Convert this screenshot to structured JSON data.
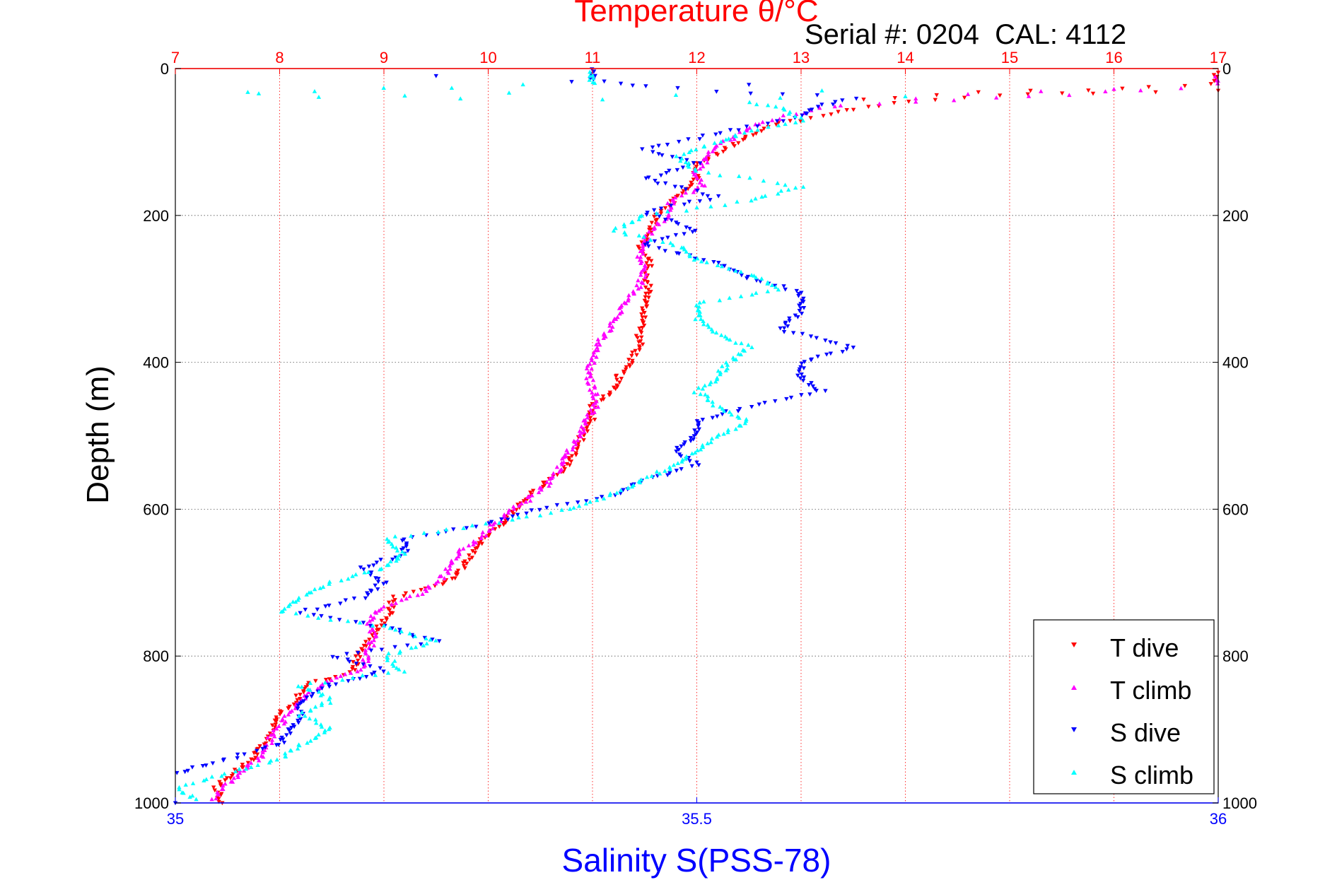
{
  "chart_data": {
    "type": "scatter",
    "title": "Temperature θ/°C",
    "annotation": "Serial #: 0204  CAL: 4112",
    "ylabel": "Depth (m)",
    "xlabel_bottom": "Salinity S(PSS-78)",
    "xlabel_top": "Temperature θ/°C",
    "ylim": [
      0,
      1000
    ],
    "y_reversed": true,
    "y_ticks": [
      0,
      200,
      400,
      600,
      800,
      1000
    ],
    "temperature_axis": {
      "range": [
        7,
        17
      ],
      "ticks": [
        7,
        8,
        9,
        10,
        11,
        12,
        13,
        14,
        15,
        16,
        17
      ],
      "color": "#ff0000"
    },
    "salinity_axis": {
      "range": [
        35,
        36
      ],
      "ticks": [
        35,
        35.5,
        36
      ],
      "color": "#0000ff"
    },
    "grid": {
      "vertical": "temperature ticks, red dotted",
      "horizontal": "depth ticks, gray dotted"
    },
    "legend": {
      "placement": "bottom-right",
      "entries": [
        "T dive",
        "T climb",
        "S dive",
        "S climb"
      ]
    },
    "series": [
      {
        "name": "T dive",
        "axis": "temperature",
        "marker": "triangle-down",
        "color": "#ff0000",
        "points": [
          [
            17.0,
            0
          ],
          [
            16.95,
            20
          ],
          [
            14.0,
            45
          ],
          [
            13.5,
            55
          ],
          [
            13.2,
            65
          ],
          [
            12.8,
            75
          ],
          [
            12.6,
            85
          ],
          [
            12.4,
            100
          ],
          [
            12.2,
            115
          ],
          [
            12.0,
            130
          ],
          [
            12.0,
            150
          ],
          [
            11.85,
            170
          ],
          [
            11.7,
            190
          ],
          [
            11.6,
            205
          ],
          [
            11.55,
            225
          ],
          [
            11.45,
            245
          ],
          [
            11.55,
            265
          ],
          [
            11.5,
            285
          ],
          [
            11.55,
            300
          ],
          [
            11.5,
            320
          ],
          [
            11.5,
            340
          ],
          [
            11.45,
            360
          ],
          [
            11.45,
            380
          ],
          [
            11.35,
            400
          ],
          [
            11.25,
            420
          ],
          [
            11.2,
            440
          ],
          [
            11.0,
            460
          ],
          [
            11.0,
            480
          ],
          [
            10.9,
            500
          ],
          [
            10.85,
            520
          ],
          [
            10.75,
            540
          ],
          [
            10.6,
            560
          ],
          [
            10.4,
            580
          ],
          [
            10.25,
            600
          ],
          [
            10.15,
            620
          ],
          [
            9.95,
            640
          ],
          [
            9.85,
            660
          ],
          [
            9.75,
            680
          ],
          [
            9.6,
            700
          ],
          [
            9.1,
            720
          ],
          [
            9.05,
            740
          ],
          [
            8.95,
            760
          ],
          [
            8.85,
            780
          ],
          [
            8.75,
            800
          ],
          [
            8.7,
            820
          ],
          [
            8.25,
            840
          ],
          [
            8.15,
            860
          ],
          [
            8.0,
            880
          ],
          [
            7.95,
            900
          ],
          [
            7.85,
            920
          ],
          [
            7.75,
            940
          ],
          [
            7.55,
            960
          ],
          [
            7.4,
            980
          ],
          [
            7.45,
            1000
          ]
        ],
        "scatter": [
          [
            17.0,
            30
          ],
          [
            16.4,
            32
          ],
          [
            15.8,
            34
          ],
          [
            15.2,
            30
          ],
          [
            14.7,
            32
          ],
          [
            14.3,
            36
          ],
          [
            13.9,
            40
          ],
          [
            13.6,
            42
          ]
        ]
      },
      {
        "name": "T climb",
        "axis": "temperature",
        "marker": "triangle-up",
        "color": "#ff00ff",
        "points": [
          [
            17.0,
            10
          ],
          [
            17.0,
            25
          ],
          [
            13.4,
            50
          ],
          [
            13.0,
            60
          ],
          [
            12.7,
            70
          ],
          [
            12.5,
            80
          ],
          [
            12.35,
            95
          ],
          [
            12.15,
            110
          ],
          [
            12.1,
            125
          ],
          [
            11.95,
            140
          ],
          [
            12.05,
            160
          ],
          [
            11.75,
            180
          ],
          [
            11.75,
            200
          ],
          [
            11.6,
            215
          ],
          [
            11.5,
            235
          ],
          [
            11.45,
            255
          ],
          [
            11.5,
            275
          ],
          [
            11.45,
            295
          ],
          [
            11.35,
            315
          ],
          [
            11.25,
            335
          ],
          [
            11.15,
            355
          ],
          [
            11.05,
            375
          ],
          [
            11.0,
            395
          ],
          [
            10.95,
            415
          ],
          [
            11.0,
            435
          ],
          [
            11.05,
            455
          ],
          [
            10.95,
            475
          ],
          [
            10.9,
            495
          ],
          [
            10.8,
            515
          ],
          [
            10.7,
            535
          ],
          [
            10.65,
            555
          ],
          [
            10.5,
            575
          ],
          [
            10.3,
            595
          ],
          [
            10.1,
            615
          ],
          [
            9.95,
            635
          ],
          [
            9.75,
            655
          ],
          [
            9.65,
            675
          ],
          [
            9.55,
            695
          ],
          [
            9.35,
            715
          ],
          [
            8.95,
            735
          ],
          [
            8.85,
            755
          ],
          [
            8.9,
            775
          ],
          [
            8.85,
            795
          ],
          [
            8.8,
            815
          ],
          [
            8.45,
            835
          ],
          [
            8.25,
            855
          ],
          [
            8.1,
            875
          ],
          [
            8.0,
            895
          ],
          [
            7.9,
            915
          ],
          [
            7.85,
            935
          ],
          [
            7.65,
            955
          ],
          [
            7.5,
            975
          ],
          [
            7.35,
            995
          ]
        ],
        "scatter": [
          [
            16.0,
            28
          ],
          [
            15.3,
            31
          ],
          [
            14.6,
            35
          ],
          [
            14.1,
            41
          ]
        ]
      },
      {
        "name": "S dive",
        "axis": "salinity",
        "marker": "triangle-down",
        "color": "#0000ff",
        "points": [
          [
            35.4,
            0
          ],
          [
            35.4,
            15
          ],
          [
            35.45,
            25
          ],
          [
            35.65,
            40
          ],
          [
            35.62,
            50
          ],
          [
            35.6,
            65
          ],
          [
            35.55,
            80
          ],
          [
            35.5,
            95
          ],
          [
            35.45,
            110
          ],
          [
            35.5,
            130
          ],
          [
            35.45,
            150
          ],
          [
            35.52,
            175
          ],
          [
            35.45,
            195
          ],
          [
            35.5,
            220
          ],
          [
            35.45,
            240
          ],
          [
            35.52,
            265
          ],
          [
            35.55,
            285
          ],
          [
            35.6,
            305
          ],
          [
            35.6,
            330
          ],
          [
            35.58,
            355
          ],
          [
            35.65,
            380
          ],
          [
            35.6,
            400
          ],
          [
            35.6,
            420
          ],
          [
            35.62,
            440
          ],
          [
            35.55,
            460
          ],
          [
            35.5,
            480
          ],
          [
            35.5,
            500
          ],
          [
            35.48,
            520
          ],
          [
            35.5,
            540
          ],
          [
            35.45,
            560
          ],
          [
            35.42,
            580
          ],
          [
            35.35,
            600
          ],
          [
            35.3,
            620
          ],
          [
            35.22,
            640
          ],
          [
            35.22,
            660
          ],
          [
            35.18,
            680
          ],
          [
            35.2,
            700
          ],
          [
            35.18,
            720
          ],
          [
            35.12,
            740
          ],
          [
            35.2,
            760
          ],
          [
            35.25,
            780
          ],
          [
            35.15,
            800
          ],
          [
            35.2,
            820
          ],
          [
            35.15,
            840
          ],
          [
            35.12,
            860
          ],
          [
            35.12,
            880
          ],
          [
            35.11,
            900
          ],
          [
            35.1,
            920
          ],
          [
            35.05,
            940
          ],
          [
            35.0,
            960
          ],
          [
            34.98,
            980
          ],
          [
            35.0,
            1000
          ]
        ],
        "scatter": [
          [
            35.25,
            10
          ],
          [
            35.38,
            18
          ],
          [
            35.55,
            22
          ]
        ]
      },
      {
        "name": "S climb",
        "axis": "salinity",
        "marker": "triangle-up",
        "color": "#00ffff",
        "points": [
          [
            35.4,
            5
          ],
          [
            35.4,
            20
          ],
          [
            35.0,
            35
          ],
          [
            35.55,
            45
          ],
          [
            35.58,
            55
          ],
          [
            35.6,
            70
          ],
          [
            35.55,
            85
          ],
          [
            35.52,
            100
          ],
          [
            35.48,
            120
          ],
          [
            35.5,
            140
          ],
          [
            35.6,
            160
          ],
          [
            35.55,
            180
          ],
          [
            35.45,
            200
          ],
          [
            35.42,
            220
          ],
          [
            35.48,
            240
          ],
          [
            35.5,
            260
          ],
          [
            35.55,
            280
          ],
          [
            35.58,
            300
          ],
          [
            35.5,
            320
          ],
          [
            35.5,
            340
          ],
          [
            35.52,
            360
          ],
          [
            35.55,
            380
          ],
          [
            35.53,
            400
          ],
          [
            35.52,
            420
          ],
          [
            35.5,
            440
          ],
          [
            35.52,
            460
          ],
          [
            35.55,
            480
          ],
          [
            35.52,
            500
          ],
          [
            35.5,
            520
          ],
          [
            35.48,
            540
          ],
          [
            35.45,
            560
          ],
          [
            35.42,
            580
          ],
          [
            35.38,
            600
          ],
          [
            35.3,
            620
          ],
          [
            35.2,
            640
          ],
          [
            35.22,
            660
          ],
          [
            35.2,
            680
          ],
          [
            35.15,
            700
          ],
          [
            35.12,
            720
          ],
          [
            35.1,
            740
          ],
          [
            35.2,
            760
          ],
          [
            35.25,
            780
          ],
          [
            35.2,
            800
          ],
          [
            35.22,
            820
          ],
          [
            35.12,
            840
          ],
          [
            35.15,
            860
          ],
          [
            35.12,
            880
          ],
          [
            35.15,
            900
          ],
          [
            35.12,
            920
          ],
          [
            35.1,
            940
          ],
          [
            35.05,
            960
          ],
          [
            35.0,
            980
          ],
          [
            35.02,
            995
          ]
        ],
        "scatter": [
          [
            34.92,
            33
          ],
          [
            35.08,
            34
          ],
          [
            35.22,
            37
          ],
          [
            35.32,
            33
          ],
          [
            35.48,
            36
          ],
          [
            35.58,
            40
          ],
          [
            35.62,
            30
          ],
          [
            35.7,
            38
          ]
        ]
      }
    ]
  }
}
